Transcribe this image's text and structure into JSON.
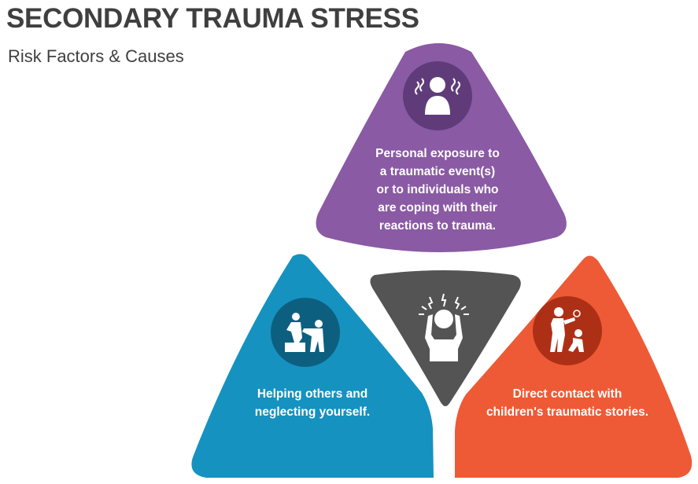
{
  "title": "SECONDARY TRAUMA STRESS",
  "subtitle": "Risk Factors & Causes",
  "colors": {
    "purple": "#8a5aa4",
    "purple_dark": "#5f3c79",
    "blue": "#1592c0",
    "blue_dark": "#0d5f80",
    "orange": "#ee5a35",
    "orange_dark": "#ad3016",
    "center": "#545454"
  },
  "segments": {
    "top": {
      "icon": "distressed-person-icon",
      "lines": [
        "Personal exposure to",
        "a traumatic event(s)",
        "or to individuals who",
        "are coping with their",
        "reactions to trauma."
      ]
    },
    "left": {
      "icon": "helping-hand-icon",
      "lines": [
        "Helping others and",
        "neglecting yourself."
      ]
    },
    "right": {
      "icon": "child-abuse-icon",
      "lines": [
        "Direct contact with",
        "children's traumatic stories."
      ]
    },
    "center": {
      "icon": "stressed-person-icon"
    }
  }
}
